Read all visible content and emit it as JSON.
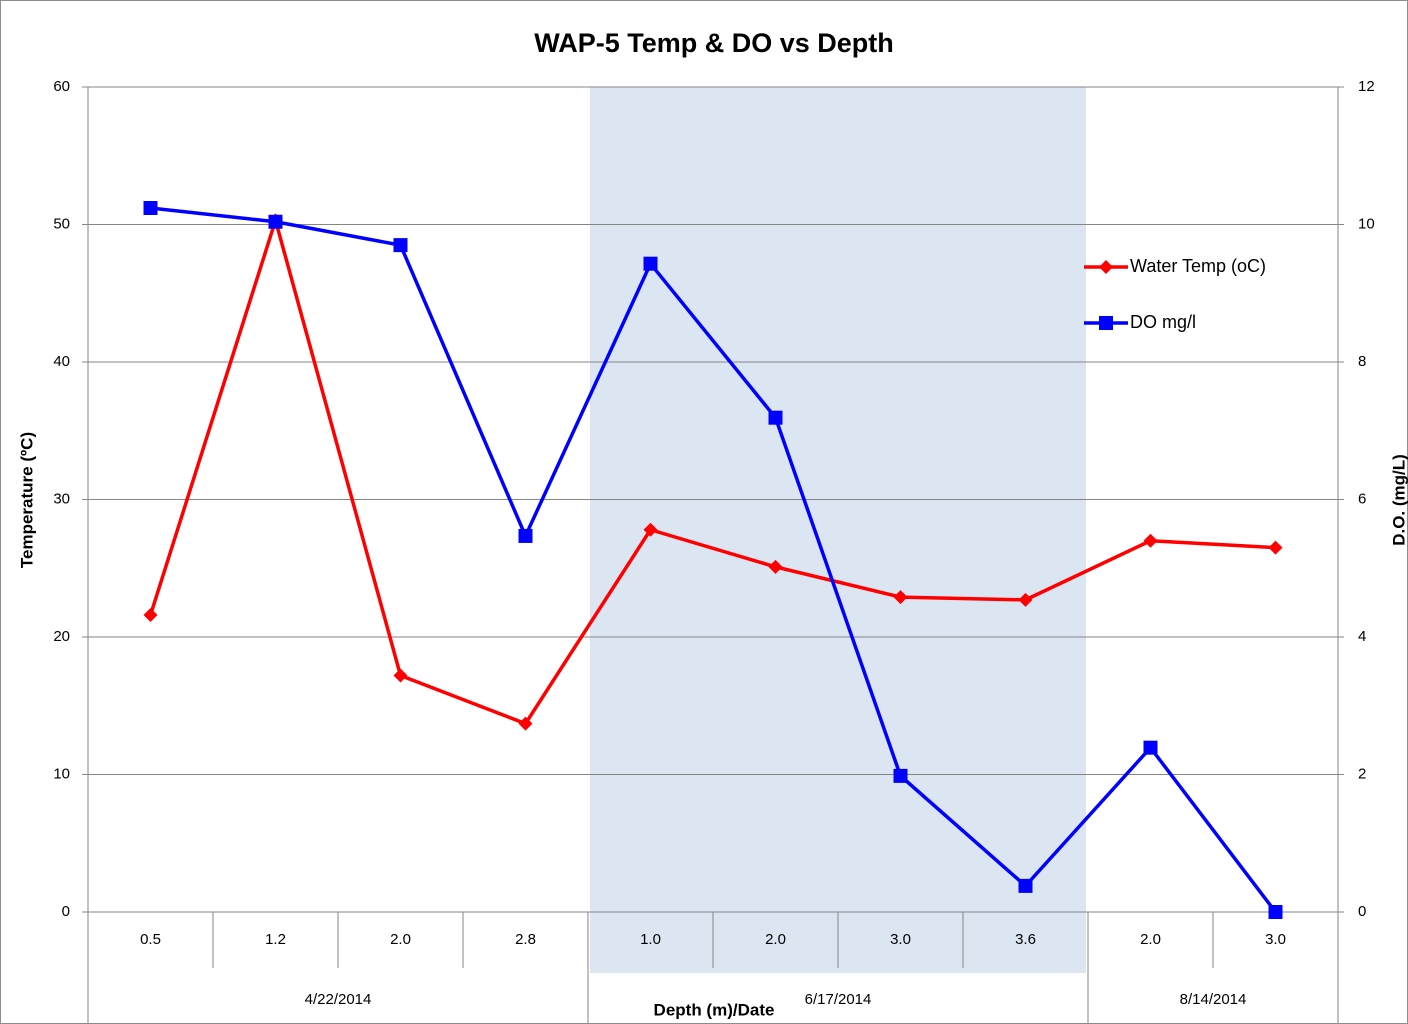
{
  "chart_data": {
    "type": "line",
    "title": "WAP-5 Temp & DO vs Depth",
    "x_label": "Depth (m)/Date",
    "y_label": "Temperature (ºC)",
    "y2_label": "D.O. (mg/L)",
    "groups": [
      {
        "label": "4/22/2014",
        "categories": [
          "0.5",
          "1.2",
          "2.0",
          "2.8"
        ],
        "shaded": false
      },
      {
        "label": "6/17/2014",
        "categories": [
          "1.0",
          "2.0",
          "3.0",
          "3.6"
        ],
        "shaded": true
      },
      {
        "label": "8/14/2014",
        "categories": [
          "2.0",
          "3.0"
        ],
        "shaded": false
      }
    ],
    "shade_color": "#dce6f2",
    "series": [
      {
        "name": "Water Temp (oC)",
        "color": "#ff0000",
        "marker": "diamond",
        "values": [
          21.6,
          50.3,
          17.2,
          13.7,
          27.8,
          25.1,
          22.9,
          22.7,
          27.0,
          26.5
        ]
      },
      {
        "name": "DO mg/l",
        "color": "#0000ff",
        "marker": "square",
        "axis": "y2",
        "values": [
          10.24,
          10.04,
          9.7,
          5.47,
          9.43,
          7.19,
          1.98,
          0.38,
          2.39,
          0
        ]
      }
    ],
    "ylim": [
      0,
      60
    ],
    "yticks": [
      0,
      10,
      20,
      30,
      40,
      50,
      60
    ],
    "y2lim": [
      0,
      12
    ],
    "y2ticks": [
      0,
      2,
      4,
      6,
      8,
      10,
      12
    ],
    "grid": true,
    "legend": "right"
  }
}
